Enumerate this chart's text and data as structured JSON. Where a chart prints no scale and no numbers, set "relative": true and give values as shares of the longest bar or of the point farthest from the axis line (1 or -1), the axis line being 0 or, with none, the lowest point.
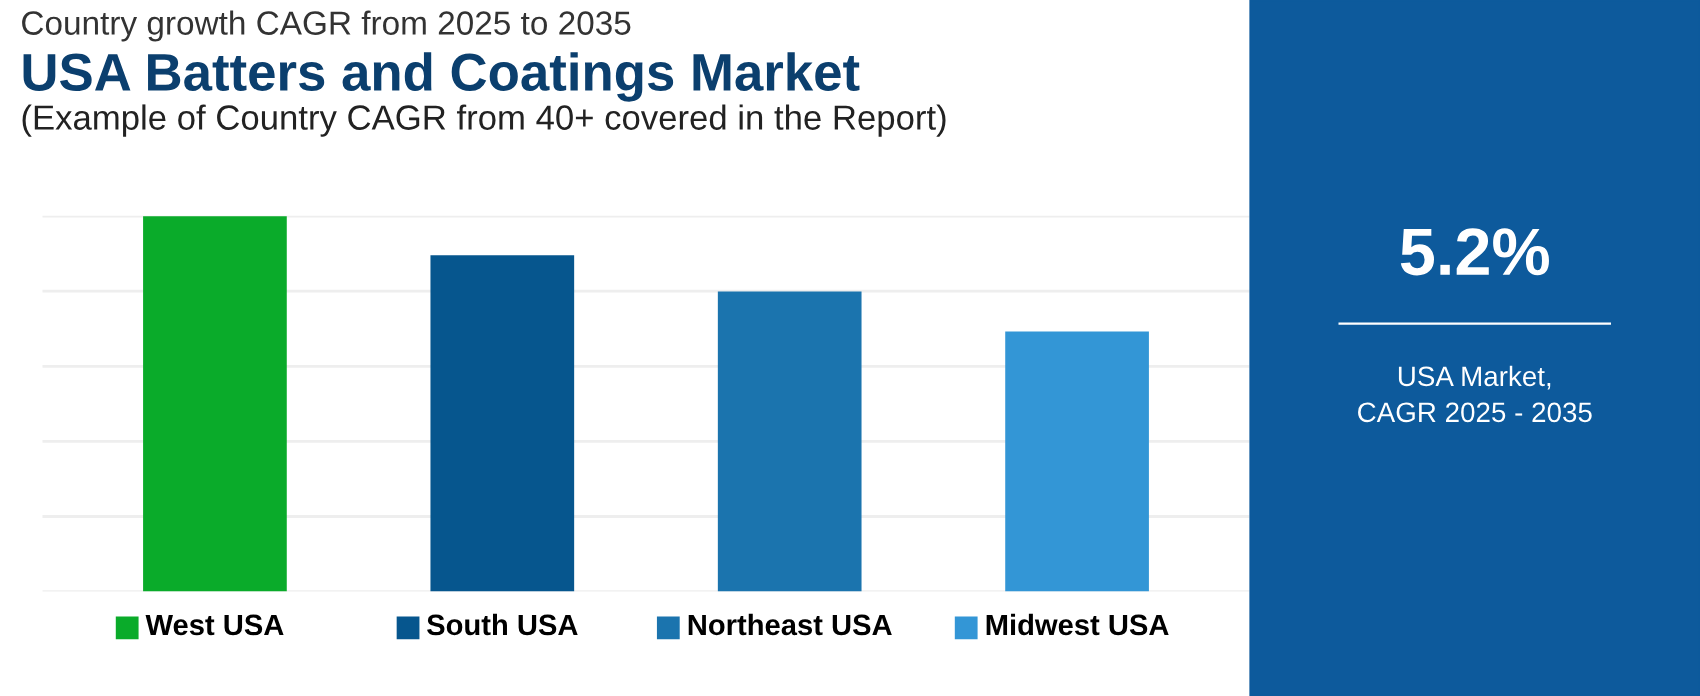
{
  "chart_data": [
    {
      "type": "bar",
      "title": "USA Batters and Coatings Market",
      "subtitle": "(Example of Country CAGR from 40+ covered in the Report)",
      "annotations": [
        "Country growth CAGR from 2025 to 2035"
      ],
      "categories": [
        "West USA",
        "South USA",
        "Northeast USA",
        "Midwest USA"
      ],
      "values": [
        1,
        0.896,
        0.799,
        0.693
      ],
      "colors": [
        "#0aab2a",
        "#06568e",
        "#1b74ae",
        "#3396d6"
      ],
      "relative": true,
      "grid": "y"
    },
    {
      "type": "other",
      "color": "#0d5a9c",
      "title": "5.2%",
      "annotations": [
        "USA Market,\nCAGR 2025 - 2035"
      ]
    }
  ]
}
